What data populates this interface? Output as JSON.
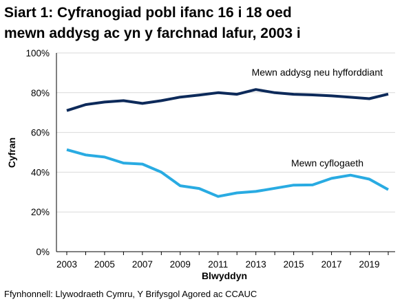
{
  "header": {
    "title_line1": "Siart 1: Cyfranogiad pobl ifanc 16 i 18 oed",
    "title_line2": "mewn addysg ac yn y farchnad lafur, 2003 i"
  },
  "footer": {
    "source": "Ffynhonnell: Llywodraeth Cymru, Y Brifysgol Agored ac CCAUC"
  },
  "chart_data": {
    "type": "line",
    "title": "Siart 1: Cyfranogiad pobl ifanc 16 i 18 oed mewn addysg ac yn y farchnad lafur, 2003 i",
    "xlabel": "Blwyddyn",
    "ylabel": "Cyfran",
    "x": [
      2003,
      2004,
      2005,
      2006,
      2007,
      2008,
      2009,
      2010,
      2011,
      2012,
      2013,
      2014,
      2015,
      2016,
      2017,
      2018,
      2019,
      2020
    ],
    "x_ticks": [
      "2003",
      "2005",
      "2007",
      "2009",
      "2011",
      "2013",
      "2015",
      "2017",
      "2019"
    ],
    "y_ticks": [
      "0%",
      "20%",
      "40%",
      "60%",
      "80%",
      "100%"
    ],
    "ylim": [
      0,
      100
    ],
    "grid": "horizontal",
    "legend": "direct labels",
    "series": [
      {
        "name": "Mewn addysg neu hyfforddiant",
        "color": "#0d2a5a",
        "values": [
          71,
          74,
          75.3,
          76,
          74.6,
          76,
          77.8,
          78.8,
          80,
          79.2,
          81.6,
          80,
          79.2,
          78.9,
          78.4,
          77.7,
          77,
          79.3
        ]
      },
      {
        "name": "Mewn cyflogaeth",
        "color": "#29abe2",
        "values": [
          51.3,
          48.7,
          47.6,
          44.6,
          44.1,
          40,
          33.2,
          31.8,
          27.8,
          29.6,
          30.3,
          31.9,
          33.5,
          33.6,
          36.9,
          38.5,
          36.5,
          31.2
        ]
      }
    ]
  }
}
